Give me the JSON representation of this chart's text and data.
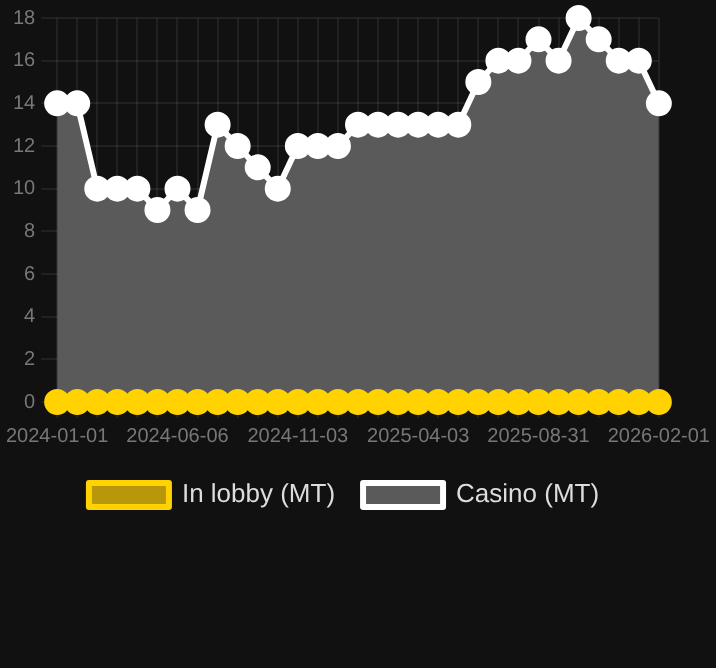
{
  "chart_data": {
    "type": "area",
    "categories": [
      "2024-01-01",
      null,
      null,
      null,
      null,
      null,
      "2024-06-06",
      null,
      null,
      null,
      null,
      null,
      "2024-11-03",
      null,
      null,
      null,
      null,
      null,
      "2025-04-03",
      null,
      null,
      null,
      null,
      null,
      "2025-08-31",
      null,
      null,
      null,
      null,
      null,
      "2026-02-01"
    ],
    "series": [
      {
        "name": "In lobby (MT)",
        "type": "line",
        "color": "#ffd200",
        "values": [
          0,
          0,
          0,
          0,
          0,
          0,
          0,
          0,
          0,
          0,
          0,
          0,
          0,
          0,
          0,
          0,
          0,
          0,
          0,
          0,
          0,
          0,
          0,
          0,
          0,
          0,
          0,
          0,
          0,
          0,
          0
        ]
      },
      {
        "name": "Casino (MT)",
        "color": "#ffffff",
        "values": [
          14,
          14,
          10,
          10,
          10,
          9,
          10,
          9,
          13,
          12,
          11,
          10,
          12,
          12,
          12,
          13,
          13,
          13,
          13,
          13,
          13,
          15,
          16,
          16,
          17,
          16,
          18,
          17,
          16,
          16,
          14
        ]
      }
    ],
    "ylim": [
      0,
      18
    ],
    "yticks": [
      0,
      2,
      4,
      6,
      8,
      10,
      12,
      14,
      16,
      18
    ],
    "grid": true,
    "legend": "bottom",
    "marker": "circle"
  }
}
